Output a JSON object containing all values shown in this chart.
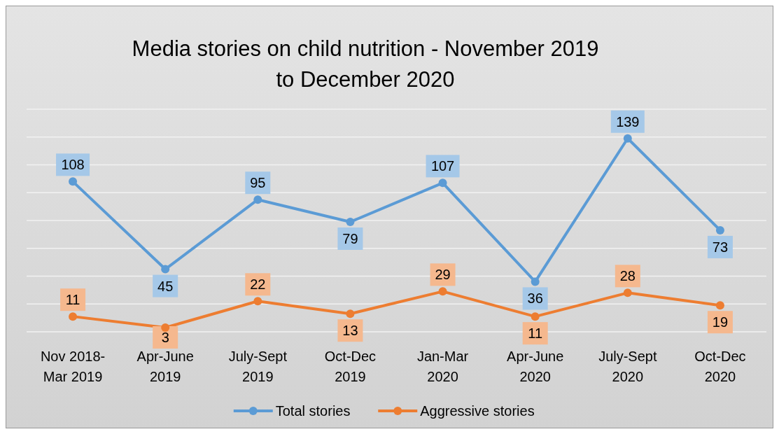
{
  "chart_data": {
    "type": "line",
    "title": "Media stories on child nutrition - November 2019 to December 2020",
    "categories": [
      "Nov 2018-Mar 2019",
      "Apr-June 2019",
      "July-Sept 2019",
      "Oct-Dec 2019",
      "Jan-Mar 2020",
      "Apr-June 2020",
      "July-Sept 2020",
      "Oct-Dec 2020"
    ],
    "series": [
      {
        "name": "Total stories",
        "color": "#5b9bd5",
        "values": [
          108,
          45,
          95,
          79,
          107,
          36,
          139,
          73
        ]
      },
      {
        "name": "Aggressive stories",
        "color": "#ed7d31",
        "values": [
          11,
          3,
          22,
          13,
          29,
          11,
          28,
          19
        ]
      }
    ],
    "ylim": [
      0,
      160
    ],
    "yticks": [
      {
        "value": 0,
        "label": null
      },
      {
        "value": 20,
        "label": null
      },
      {
        "value": 40,
        "label": null
      },
      {
        "value": 60,
        "label": null
      },
      {
        "value": 80,
        "label": null
      },
      {
        "value": 100,
        "label": null
      },
      {
        "value": 120,
        "label": null
      },
      {
        "value": 140,
        "label": null
      },
      {
        "value": 160,
        "label": null
      }
    ],
    "grid": "y",
    "legend": "bottom",
    "marker": "circle",
    "line_style": "solid",
    "data_labels": true
  }
}
